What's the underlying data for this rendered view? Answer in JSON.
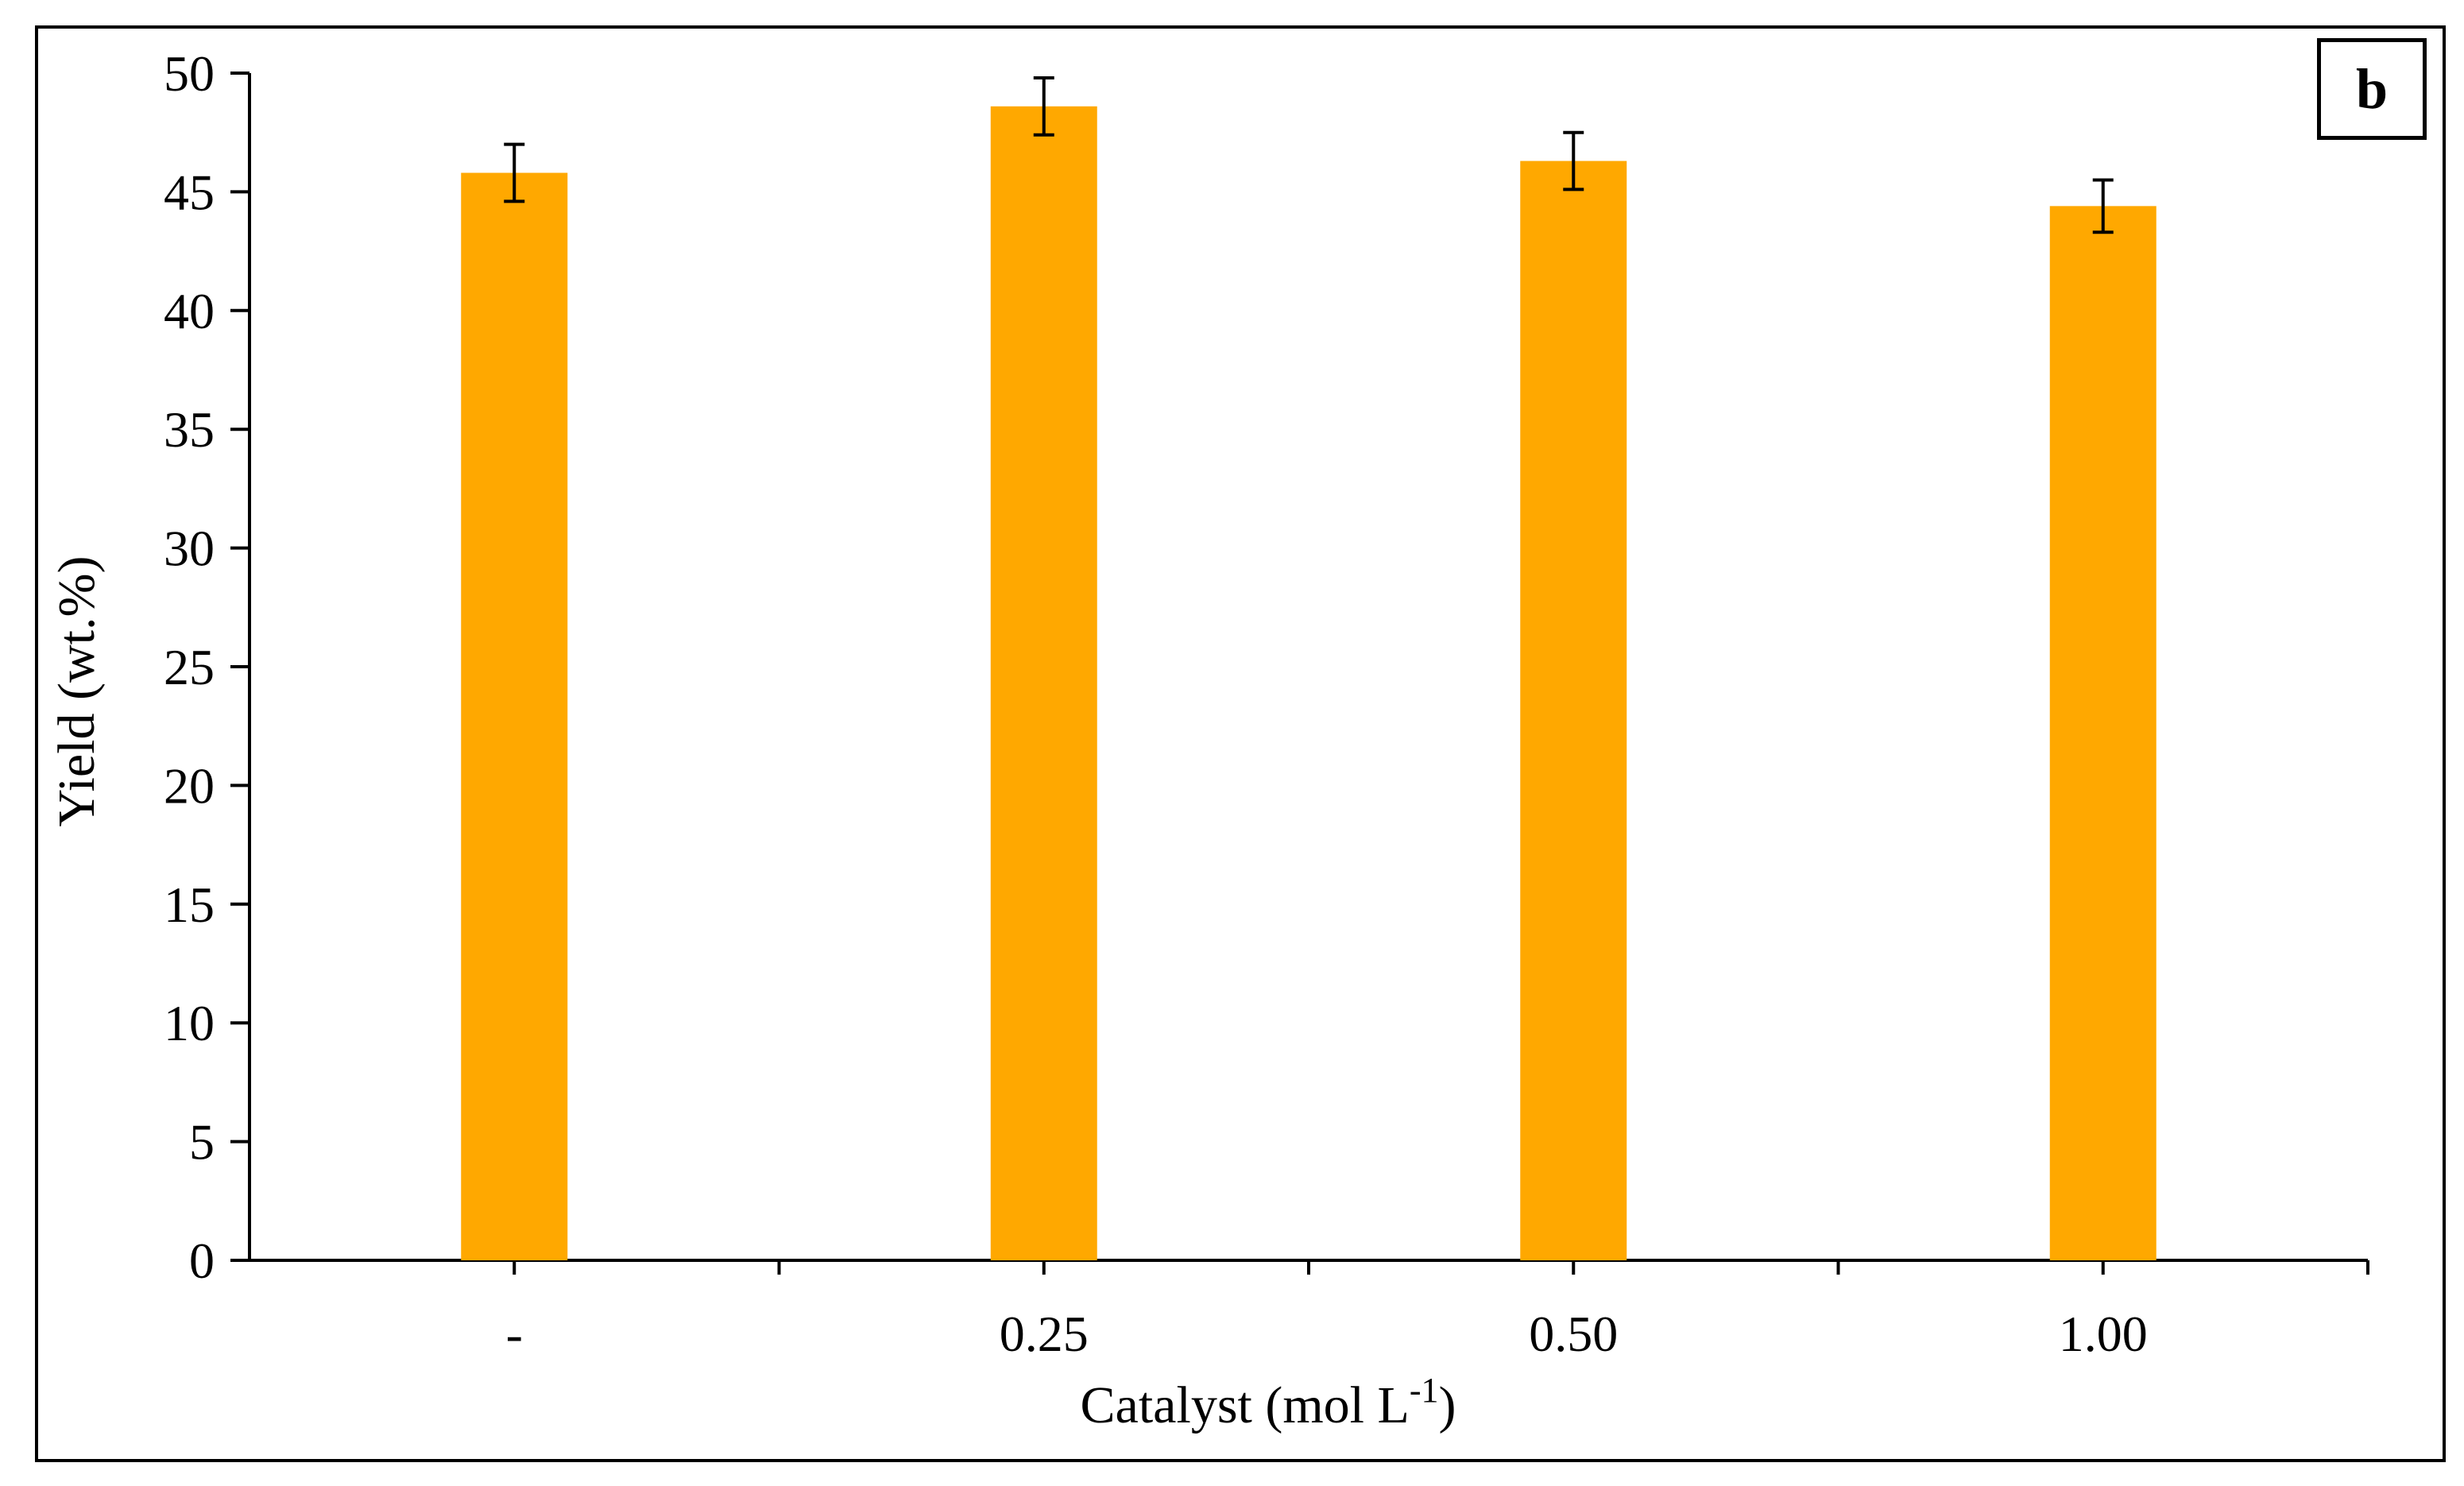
{
  "chart_data": {
    "type": "bar",
    "panel_label": "b",
    "title": "",
    "xlabel": "Catalyst (mol L",
    "xlabel_sup": "-1",
    "xlabel_end": ")",
    "ylabel": "Yield (wt.%)",
    "categories": [
      "-",
      "0.25",
      "0.50",
      "1.00"
    ],
    "values": [
      45.8,
      48.6,
      46.3,
      44.4
    ],
    "errors": [
      1.2,
      1.2,
      1.2,
      1.1
    ],
    "ylim": [
      0,
      50
    ],
    "yticks": [
      "0",
      "5",
      "10",
      "15",
      "20",
      "25",
      "30",
      "35",
      "40",
      "45",
      "50"
    ],
    "bar_color": "#FFA800",
    "grid": false
  }
}
